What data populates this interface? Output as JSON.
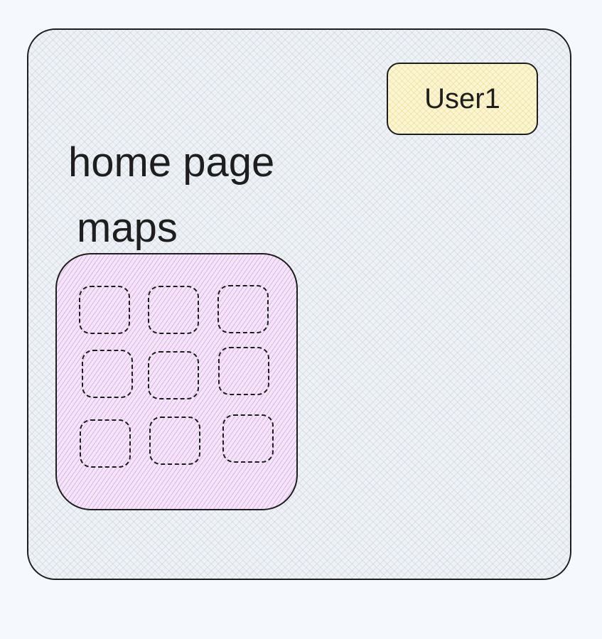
{
  "header": {
    "user_label": "User1"
  },
  "main": {
    "title": "home page",
    "maps_label": "maps"
  },
  "colors": {
    "frame_fill": "#eef2f6",
    "user_badge_fill": "#fbf5d4",
    "maps_panel_fill": "#f3e6f7",
    "stroke": "#1e1e1e"
  }
}
